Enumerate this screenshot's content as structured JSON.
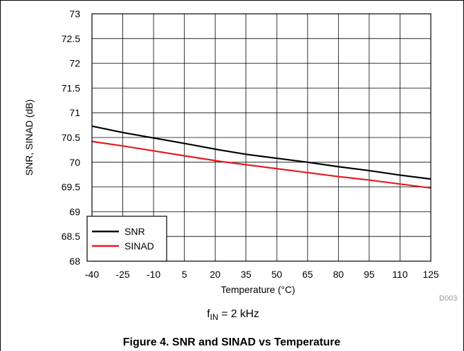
{
  "chart_data": {
    "type": "line",
    "xlabel": "Temperature (°C)",
    "ylabel": "SNR, SINAD (dB)",
    "xlim": [
      -40,
      125
    ],
    "ylim": [
      68,
      73
    ],
    "xticks": [
      -40,
      -25,
      -10,
      5,
      20,
      35,
      50,
      65,
      80,
      95,
      110,
      125
    ],
    "yticks": [
      68,
      68.5,
      69,
      69.5,
      70,
      70.5,
      71,
      71.5,
      72,
      72.5,
      73
    ],
    "grid": true,
    "legend_position": "bottom-left",
    "series": [
      {
        "name": "SNR",
        "color": "#000000",
        "x": [
          -40,
          -25,
          -10,
          5,
          22,
          35,
          50,
          65,
          80,
          95,
          110,
          125
        ],
        "y": [
          70.73,
          70.6,
          70.49,
          70.38,
          70.25,
          70.16,
          70.08,
          70.0,
          69.91,
          69.83,
          69.74,
          69.66
        ]
      },
      {
        "name": "SINAD",
        "color": "#e8191f",
        "x": [
          -40,
          -25,
          -10,
          5,
          22,
          35,
          50,
          65,
          80,
          95,
          110,
          125
        ],
        "y": [
          70.42,
          70.33,
          70.23,
          70.13,
          70.02,
          69.95,
          69.87,
          69.79,
          69.71,
          69.64,
          69.56,
          69.48
        ]
      }
    ],
    "annotations": {
      "code": "D003",
      "condition_main": "f",
      "condition_sub": "IN",
      "condition_rest": " = 2 kHz"
    }
  },
  "caption": "Figure 4. SNR and SINAD vs Temperature"
}
